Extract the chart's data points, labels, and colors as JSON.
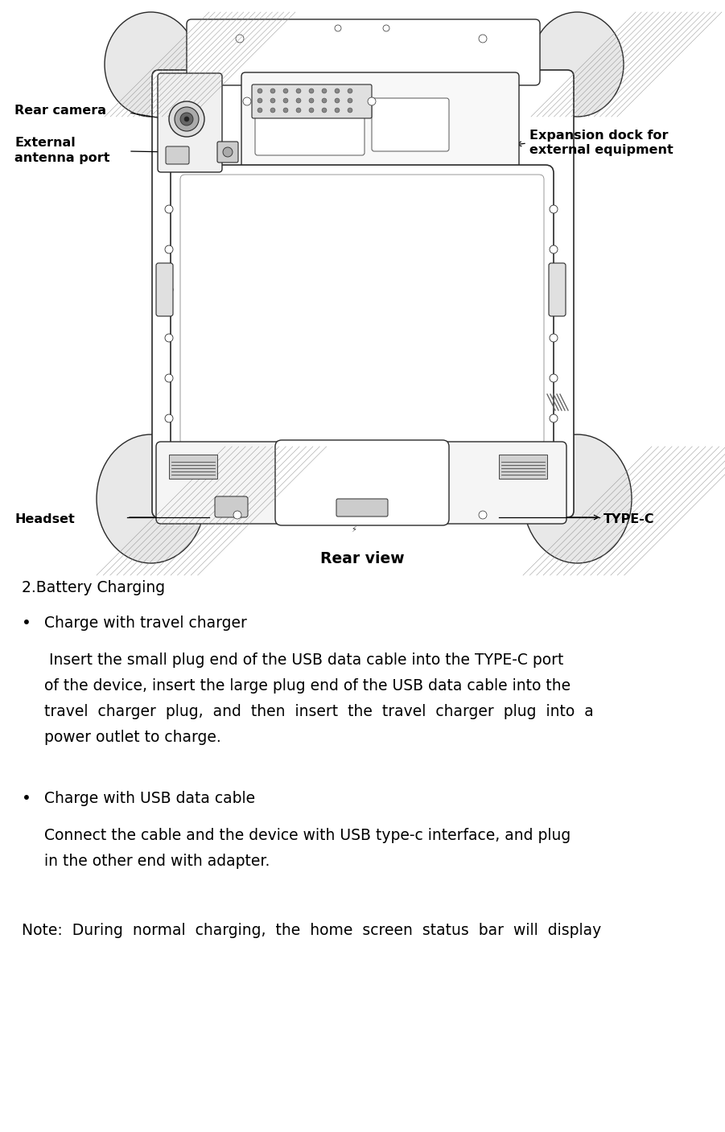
{
  "bg_color": "#ffffff",
  "fig_width": 9.01,
  "fig_height": 14.07,
  "dpi": 100,
  "rear_view_label": "Rear view",
  "section_title": "2.Battery Charging",
  "bullet1_header": "Charge with travel charger",
  "bullet1_body_lines": [
    " Insert the small plug end of the USB data cable into the TYPE-C port",
    "of the device, insert the large plug end of the USB data cable into the",
    "travel  charger  plug,  and  then  insert  the  travel  charger  plug  into  a",
    "power outlet to charge."
  ],
  "bullet2_header": "Charge with USB data cable",
  "bullet2_body_lines": [
    "Connect the cable and the device with USB type-c interface, and plug",
    "in the other end with adapter."
  ],
  "note_text": "Note:  During  normal  charging,  the  home  screen  status  bar  will  display",
  "label_rear_camera": "Rear camera",
  "label_external": "External",
  "label_antenna": "antenna port",
  "label_expansion1": "Expansion dock for",
  "label_expansion2": "external equipment",
  "label_headset": "Headset",
  "label_typec": "TYPE-C",
  "body_fontsize": 13.5,
  "label_fontsize": 11.5,
  "title_fontsize": 13.5,
  "rear_view_fontsize": 13.5
}
